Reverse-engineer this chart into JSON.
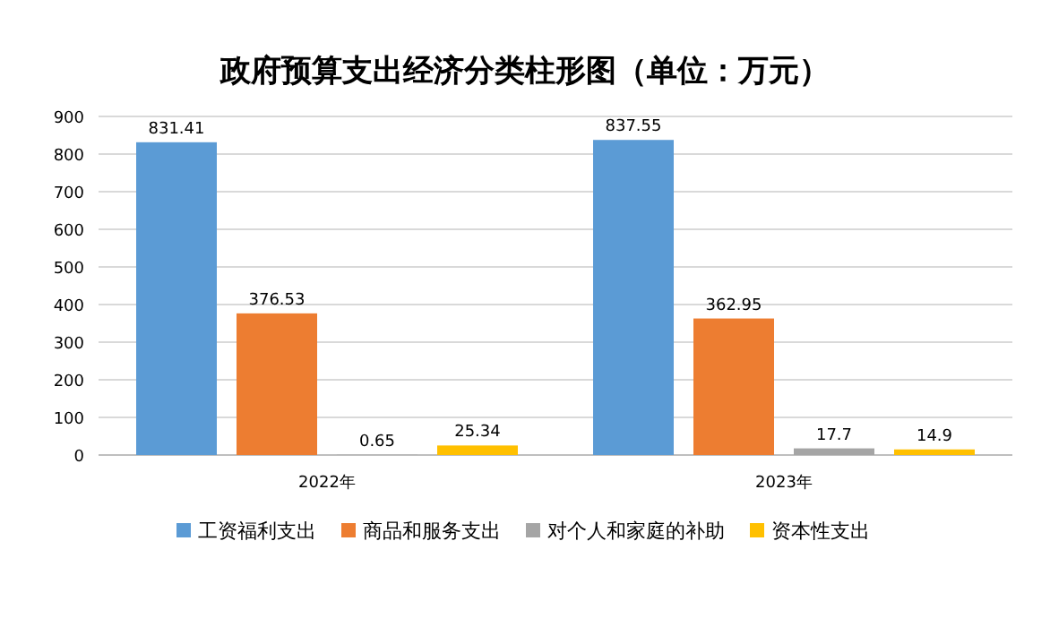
{
  "chart_data": {
    "type": "bar",
    "title": "政府预算支出经济分类柱形图（单位：万元）",
    "categories": [
      "2022年",
      "2023年"
    ],
    "series": [
      {
        "name": "工资福利支出",
        "color": "#5b9bd5",
        "values": [
          831.41,
          837.55
        ]
      },
      {
        "name": "商品和服务支出",
        "color": "#ed7d31",
        "values": [
          376.53,
          362.95
        ]
      },
      {
        "name": "对个人和家庭的补助",
        "color": "#a5a5a5",
        "values": [
          0.65,
          17.7
        ]
      },
      {
        "name": "资本性支出",
        "color": "#ffc000",
        "values": [
          25.34,
          14.9
        ]
      }
    ],
    "ylim": [
      0,
      900
    ],
    "yticks": [
      0,
      100,
      200,
      300,
      400,
      500,
      600,
      700,
      800,
      900
    ],
    "grid": "y",
    "legend": "bottom",
    "data_labels": true
  }
}
